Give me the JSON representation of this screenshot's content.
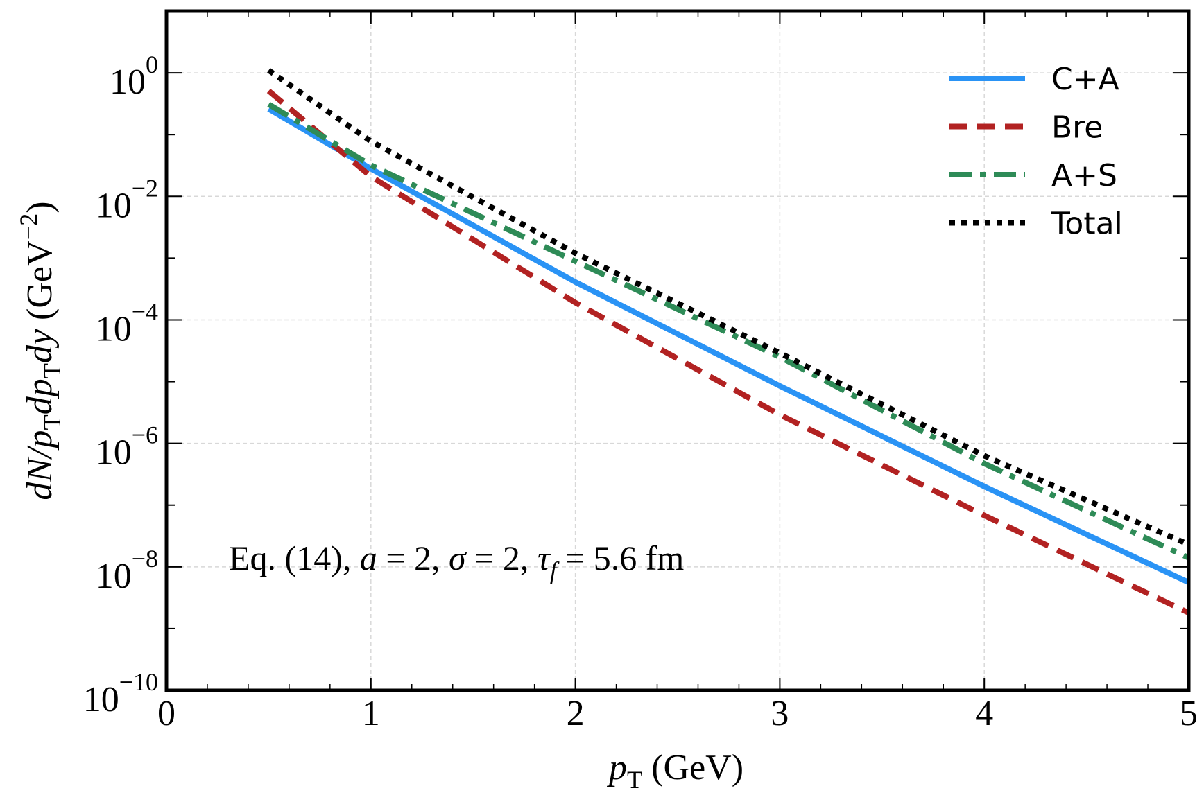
{
  "chart_data": {
    "type": "line",
    "title": "",
    "xlabel": {
      "main": "p",
      "sub": "T",
      "rest": " (GeV)"
    },
    "ylabel": {
      "parts": [
        {
          "t": "dN/p",
          "i": true
        },
        {
          "t": "T",
          "sub": true
        },
        {
          "t": "dp",
          "i": true
        },
        {
          "t": "T",
          "sub": true
        },
        {
          "t": "dy",
          "i": true
        },
        {
          "t": " (GeV",
          "i": false
        },
        {
          "t": "−2",
          "sup": true
        },
        {
          "t": ")",
          "i": false
        }
      ]
    },
    "xlim": [
      0,
      5
    ],
    "ylim": [
      1e-10,
      10
    ],
    "yscale": "log",
    "grid": true,
    "legend_position": "top-right",
    "x_ticks": [
      "0",
      "1",
      "2",
      "3",
      "4",
      "5"
    ],
    "y_ticks": [
      {
        "base": "10",
        "exp": "0",
        "value": 1
      },
      {
        "base": "10",
        "exp": "−2",
        "value": 0.01
      },
      {
        "base": "10",
        "exp": "−4",
        "value": 0.0001
      },
      {
        "base": "10",
        "exp": "−6",
        "value": 1e-06
      },
      {
        "base": "10",
        "exp": "−8",
        "value": 1e-08
      },
      {
        "base": "10",
        "exp": "−10",
        "value": 1e-10
      }
    ],
    "annotation": {
      "parts": [
        {
          "t": "Eq. (14), "
        },
        {
          "t": "a",
          "i": true
        },
        {
          "t": " = 2, "
        },
        {
          "t": "σ",
          "i": true
        },
        {
          "t": " = 2, "
        },
        {
          "t": "τ",
          "i": true
        },
        {
          "t": "f",
          "i": true,
          "sub": true
        },
        {
          "t": " = 5.6 fm"
        }
      ]
    },
    "x": [
      0.5,
      1,
      2,
      3,
      4,
      5
    ],
    "series": [
      {
        "name": "C+A",
        "color": "#2a93f5",
        "style": "solid",
        "values": [
          0.26,
          0.028,
          0.00041,
          8.5e-06,
          2e-07,
          5.6e-09
        ]
      },
      {
        "name": "Bre",
        "color": "#b22222",
        "style": "dashed",
        "values": [
          0.51,
          0.021,
          0.00019,
          2.9e-06,
          6.8e-08,
          1.8e-09
        ]
      },
      {
        "name": "A+S",
        "color": "#2e8b57",
        "style": "dashdot",
        "values": [
          0.31,
          0.032,
          0.00089,
          2.5e-05,
          4.7e-07,
          1.4e-08
        ]
      },
      {
        "name": "Total",
        "color": "#000000",
        "style": "dotted",
        "values": [
          1.1,
          0.078,
          0.0012,
          2.9e-05,
          6.3e-07,
          2.3e-08
        ]
      }
    ]
  }
}
